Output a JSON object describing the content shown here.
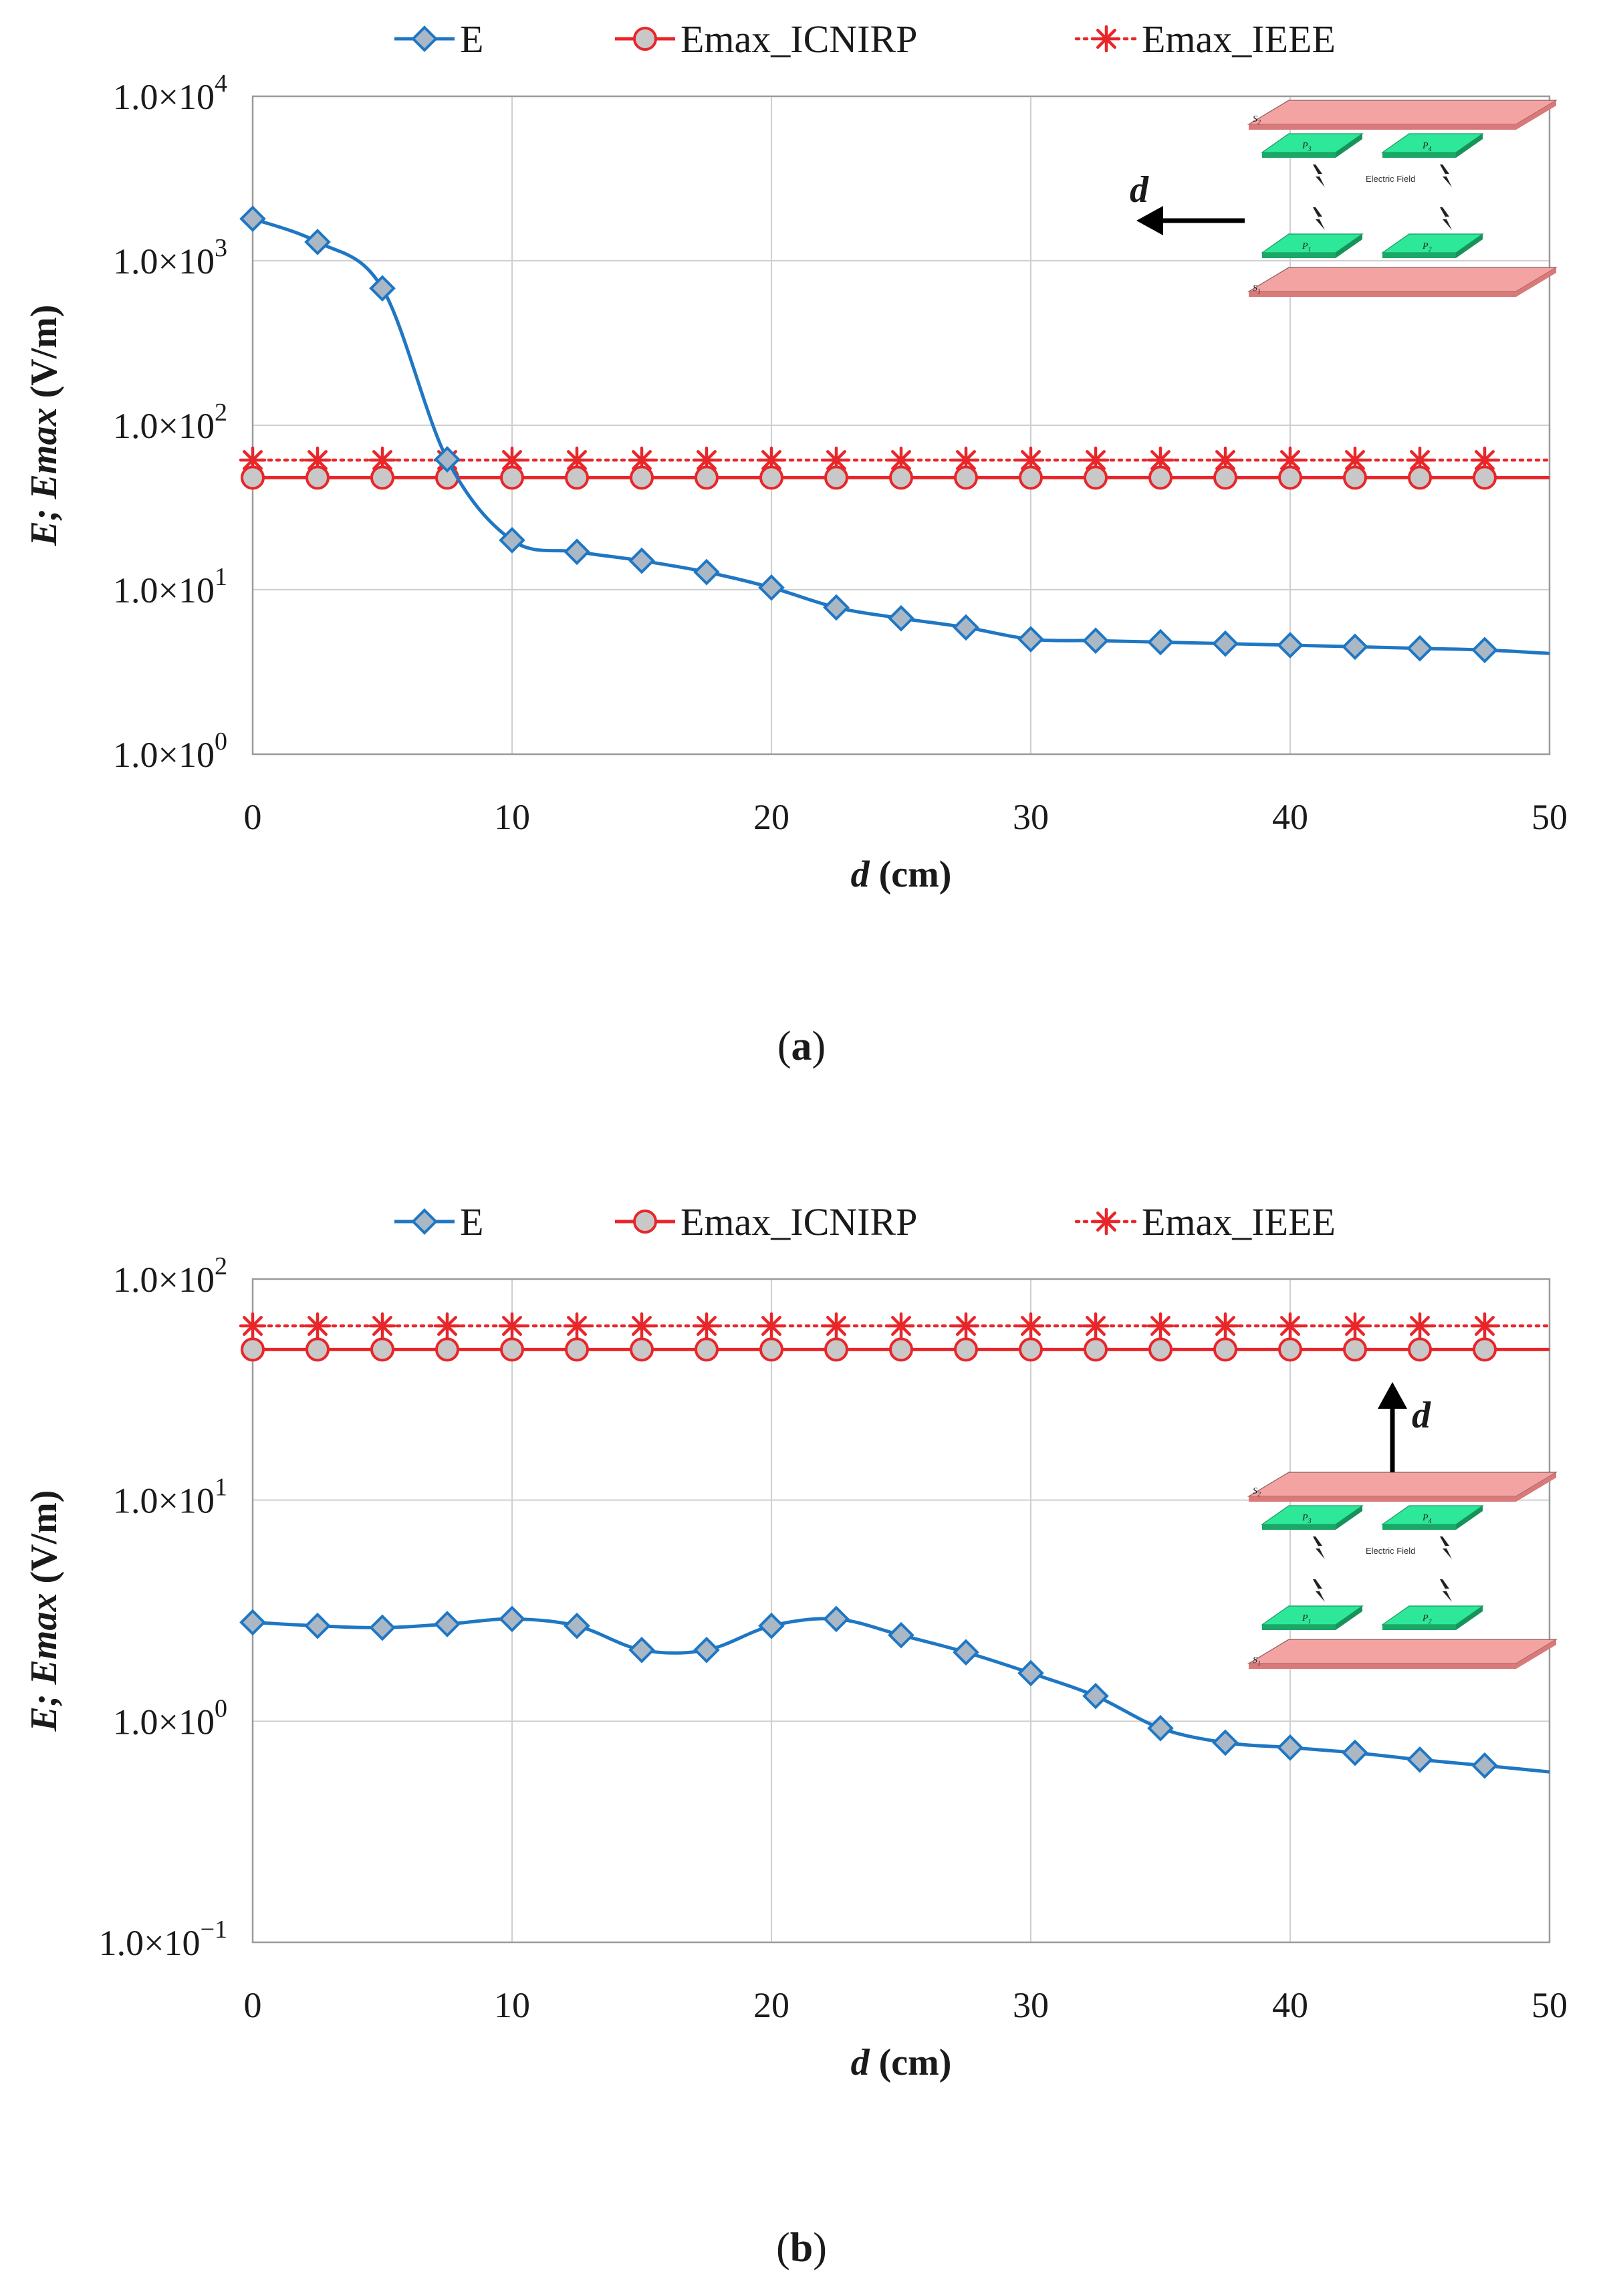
{
  "chart_data": [
    {
      "type": "line",
      "id": "a",
      "caption": "a",
      "xlabel_italic": "d",
      "xlabel_rest": " (cm)",
      "ylabel": "E; Emax (V/m)",
      "ylabel_parts": [
        "E; ",
        "Emax",
        " (V/m)"
      ],
      "xlim": [
        0,
        50
      ],
      "ylim": [
        1,
        10000
      ],
      "yscale": "log",
      "xticks": [
        "0",
        "10",
        "20",
        "30",
        "40",
        "50"
      ],
      "yticks": [
        {
          "value": 1,
          "mant": "1.0×10",
          "exp": "0"
        },
        {
          "value": 10,
          "mant": "1.0×10",
          "exp": "1"
        },
        {
          "value": 100,
          "mant": "1.0×10",
          "exp": "2"
        },
        {
          "value": 1000,
          "mant": "1.0×10",
          "exp": "3"
        },
        {
          "value": 10000,
          "mant": "1.0×10",
          "exp": "4"
        }
      ],
      "grid": true,
      "legend_position": "top",
      "x": [
        0,
        2.5,
        5,
        7.5,
        10,
        12.5,
        15,
        17.5,
        20,
        22.5,
        25,
        27.5,
        30,
        32.5,
        35,
        37.5,
        40,
        42.5,
        45,
        47.5
      ],
      "series": [
        {
          "name": "E",
          "color": "#1f77c4",
          "marker": "diamond",
          "style": "solid",
          "values": [
            1800,
            1300,
            680,
            62,
            20,
            17,
            15,
            12.8,
            10.3,
            7.8,
            6.7,
            5.9,
            5.0,
            4.9,
            4.8,
            4.7,
            4.6,
            4.5,
            4.4,
            4.3
          ],
          "end_value": 4.1
        },
        {
          "name": "Emax_ICNIRP",
          "color": "#e8262a",
          "marker": "circle",
          "style": "solid",
          "constant": 48
        },
        {
          "name": "Emax_IEEE",
          "color": "#e8262a",
          "marker": "star",
          "style": "dotted",
          "constant": 61.4
        }
      ],
      "inset": {
        "label": "Electric Field",
        "arrow_label": "d",
        "arrow_direction": "left",
        "plates": [
          "S",
          "P",
          "P",
          "P",
          "P",
          "S"
        ],
        "subs": [
          "2",
          "3",
          "4",
          "1",
          "2",
          "1"
        ]
      }
    },
    {
      "type": "line",
      "id": "b",
      "caption": "b",
      "xlabel_italic": "d",
      "xlabel_rest": " (cm)",
      "ylabel": "E; Emax (V/m)",
      "ylabel_parts": [
        "E; ",
        "Emax",
        " (V/m)"
      ],
      "xlim": [
        0,
        50
      ],
      "ylim": [
        0.1,
        100
      ],
      "yscale": "log",
      "xticks": [
        "0",
        "10",
        "20",
        "30",
        "40",
        "50"
      ],
      "yticks": [
        {
          "value": 0.1,
          "mant": "1.0×10",
          "exp": "−1"
        },
        {
          "value": 1,
          "mant": "1.0×10",
          "exp": "0"
        },
        {
          "value": 10,
          "mant": "1.0×10",
          "exp": "1"
        },
        {
          "value": 100,
          "mant": "1.0×10",
          "exp": "2"
        }
      ],
      "grid": true,
      "legend_position": "top",
      "x": [
        0,
        2.5,
        5,
        7.5,
        10,
        12.5,
        15,
        17.5,
        20,
        22.5,
        25,
        27.5,
        30,
        32.5,
        35,
        37.5,
        40,
        42.5,
        45,
        47.5
      ],
      "series": [
        {
          "name": "E",
          "color": "#1f77c4",
          "marker": "diamond",
          "style": "solid",
          "values": [
            2.8,
            2.7,
            2.65,
            2.75,
            2.9,
            2.7,
            2.1,
            2.1,
            2.7,
            2.9,
            2.45,
            2.05,
            1.65,
            1.3,
            0.93,
            0.8,
            0.76,
            0.72,
            0.67,
            0.63
          ],
          "end_value": 0.59
        },
        {
          "name": "Emax_ICNIRP",
          "color": "#e8262a",
          "marker": "circle",
          "style": "solid",
          "constant": 48
        },
        {
          "name": "Emax_IEEE",
          "color": "#e8262a",
          "marker": "star",
          "style": "dotted",
          "constant": 61.4
        }
      ],
      "inset": {
        "label": "Electric Field",
        "arrow_label": "d",
        "arrow_direction": "up",
        "plates": [
          "S",
          "P",
          "P",
          "P",
          "P",
          "S"
        ],
        "subs": [
          "2",
          "3",
          "4",
          "1",
          "2",
          "1"
        ]
      }
    }
  ]
}
